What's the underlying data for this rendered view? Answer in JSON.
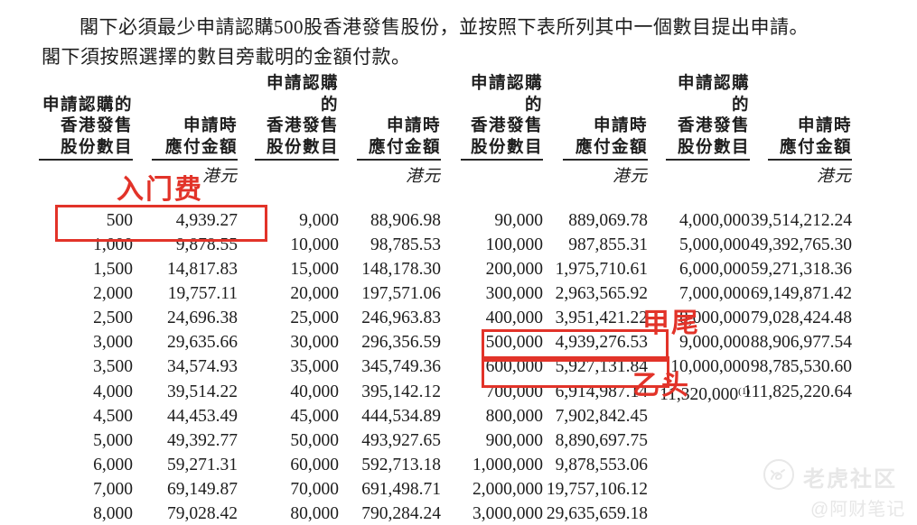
{
  "intro": {
    "line1": "閣下必須最少申請認購500股香港發售股份，並按照下表所列其中一個數目提出申請。",
    "line2": "閣下須按照選擇的數目旁載明的金額付款。"
  },
  "table": {
    "header": {
      "shares_label_lines": [
        "申請認購的",
        "香港發售",
        "股份數目"
      ],
      "amount_label_lines": [
        "申請時",
        "應付金額"
      ],
      "currency": "港元"
    },
    "groups": [
      {
        "rows": [
          {
            "shares": "500",
            "amount": "4,939.27"
          },
          {
            "shares": "1,000",
            "amount": "9,878.55"
          },
          {
            "shares": "1,500",
            "amount": "14,817.83"
          },
          {
            "shares": "2,000",
            "amount": "19,757.11"
          },
          {
            "shares": "2,500",
            "amount": "24,696.38"
          },
          {
            "shares": "3,000",
            "amount": "29,635.66"
          },
          {
            "shares": "3,500",
            "amount": "34,574.93"
          },
          {
            "shares": "4,000",
            "amount": "39,514.22"
          },
          {
            "shares": "4,500",
            "amount": "44,453.49"
          },
          {
            "shares": "5,000",
            "amount": "49,392.77"
          },
          {
            "shares": "6,000",
            "amount": "59,271.31"
          },
          {
            "shares": "7,000",
            "amount": "69,149.87"
          },
          {
            "shares": "8,000",
            "amount": "79,028.42"
          }
        ]
      },
      {
        "rows": [
          {
            "shares": "9,000",
            "amount": "88,906.98"
          },
          {
            "shares": "10,000",
            "amount": "98,785.53"
          },
          {
            "shares": "15,000",
            "amount": "148,178.30"
          },
          {
            "shares": "20,000",
            "amount": "197,571.06"
          },
          {
            "shares": "25,000",
            "amount": "246,963.83"
          },
          {
            "shares": "30,000",
            "amount": "296,356.59"
          },
          {
            "shares": "35,000",
            "amount": "345,749.36"
          },
          {
            "shares": "40,000",
            "amount": "395,142.12"
          },
          {
            "shares": "45,000",
            "amount": "444,534.89"
          },
          {
            "shares": "50,000",
            "amount": "493,927.65"
          },
          {
            "shares": "60,000",
            "amount": "592,713.18"
          },
          {
            "shares": "70,000",
            "amount": "691,498.71"
          },
          {
            "shares": "80,000",
            "amount": "790,284.24"
          }
        ]
      },
      {
        "rows": [
          {
            "shares": "90,000",
            "amount": "889,069.78"
          },
          {
            "shares": "100,000",
            "amount": "987,855.31"
          },
          {
            "shares": "200,000",
            "amount": "1,975,710.61"
          },
          {
            "shares": "300,000",
            "amount": "2,963,565.92"
          },
          {
            "shares": "400,000",
            "amount": "3,951,421.22"
          },
          {
            "shares": "500,000",
            "amount": "4,939,276.53"
          },
          {
            "shares": "600,000",
            "amount": "5,927,131.84"
          },
          {
            "shares": "700,000",
            "amount": "6,914,987.14"
          },
          {
            "shares": "800,000",
            "amount": "7,902,842.45"
          },
          {
            "shares": "900,000",
            "amount": "8,890,697.75"
          },
          {
            "shares": "1,000,000",
            "amount": "9,878,553.06"
          },
          {
            "shares": "2,000,000",
            "amount": "19,757,106.12"
          },
          {
            "shares": "3,000,000",
            "amount": "29,635,659.18"
          }
        ]
      },
      {
        "rows": [
          {
            "shares": "4,000,000",
            "amount": "39,514,212.24"
          },
          {
            "shares": "5,000,000",
            "amount": "49,392,765.30"
          },
          {
            "shares": "6,000,000",
            "amount": "59,271,318.36"
          },
          {
            "shares": "7,000,000",
            "amount": "69,149,871.42"
          },
          {
            "shares": "8,000,000",
            "amount": "79,028,424.48"
          },
          {
            "shares": "9,000,000",
            "amount": "88,906,977.54"
          },
          {
            "shares": "10,000,000",
            "amount": "98,785,530.60"
          },
          {
            "shares": "11,320,000",
            "sup": "(1)",
            "amount": "111,825,220.64"
          }
        ]
      }
    ]
  },
  "annotations": {
    "entry_fee": "入门费",
    "jia_wei": "甲尾",
    "yi_tou": "乙头"
  },
  "watermark": {
    "brand": "老虎社区",
    "handle": "@阿财笔记"
  },
  "colors": {
    "annotation_red": "#e23329",
    "text": "#1d1d1d",
    "watermark_gray": "#e7e7e7"
  }
}
